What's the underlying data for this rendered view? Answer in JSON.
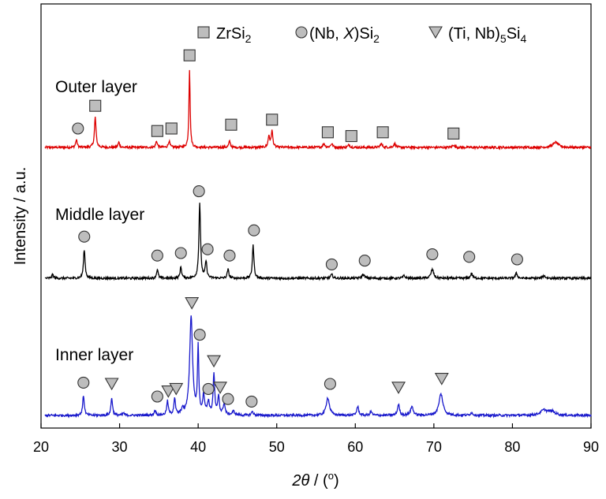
{
  "chart_data": {
    "type": "line",
    "xlabel_parts": {
      "symbol": "2θ",
      "sep": " / (",
      "unit": "o",
      "close": ")"
    },
    "ylabel": "Intensity / a.u.",
    "xlim": [
      20,
      90
    ],
    "xticks": [
      20,
      30,
      40,
      50,
      60,
      70,
      80,
      90
    ],
    "legend": {
      "placement": "top-right",
      "items": [
        {
          "marker": "square",
          "parts": [
            [
              "ZrSi",
              ""
            ],
            [
              "2",
              "sub"
            ]
          ]
        },
        {
          "marker": "circle",
          "parts": [
            [
              "(Nb, ",
              ""
            ],
            [
              "X",
              "italic"
            ],
            [
              ")Si",
              ""
            ],
            [
              "2",
              "sub"
            ]
          ]
        },
        {
          "marker": "triangle",
          "parts": [
            [
              "(Ti, Nb)",
              ""
            ],
            [
              "5",
              "sub"
            ],
            [
              "Si",
              ""
            ],
            [
              "4",
              "sub"
            ]
          ]
        }
      ]
    },
    "series": [
      {
        "name": "Outer layer",
        "color": "#dd0000",
        "baseline": 0.0,
        "peaks": [
          [
            24.5,
            0.06,
            0.12
          ],
          [
            26.9,
            0.24,
            0.12
          ],
          [
            29.9,
            0.04,
            0.12
          ],
          [
            34.7,
            0.05,
            0.12
          ],
          [
            36.3,
            0.05,
            0.12
          ],
          [
            38.9,
            0.62,
            0.09
          ],
          [
            44.0,
            0.05,
            0.12
          ],
          [
            49.0,
            0.09,
            0.12
          ],
          [
            49.4,
            0.13,
            0.12
          ],
          [
            56.0,
            0.03,
            0.15
          ],
          [
            57.0,
            0.03,
            0.15
          ],
          [
            59.2,
            0.02,
            0.15
          ],
          [
            63.3,
            0.03,
            0.15
          ],
          [
            65.0,
            0.03,
            0.15
          ],
          [
            72.5,
            0.02,
            0.15
          ],
          [
            85.5,
            0.04,
            0.4
          ]
        ],
        "markers": [
          {
            "shape": "circle",
            "x": 24.7,
            "y": 0.15
          },
          {
            "shape": "square",
            "x": 26.9,
            "y": 0.33
          },
          {
            "shape": "square",
            "x": 34.8,
            "y": 0.13
          },
          {
            "shape": "square",
            "x": 36.6,
            "y": 0.15
          },
          {
            "shape": "square",
            "x": 38.9,
            "y": 0.73
          },
          {
            "shape": "square",
            "x": 44.2,
            "y": 0.18
          },
          {
            "shape": "square",
            "x": 49.4,
            "y": 0.22
          },
          {
            "shape": "square",
            "x": 56.5,
            "y": 0.12
          },
          {
            "shape": "square",
            "x": 59.5,
            "y": 0.09
          },
          {
            "shape": "square",
            "x": 63.5,
            "y": 0.12
          },
          {
            "shape": "square",
            "x": 72.5,
            "y": 0.11
          }
        ]
      },
      {
        "name": "Middle layer",
        "color": "#000000",
        "baseline": 0.0,
        "peaks": [
          [
            21.5,
            0.03,
            0.12
          ],
          [
            25.5,
            0.23,
            0.12
          ],
          [
            34.8,
            0.07,
            0.12
          ],
          [
            37.8,
            0.09,
            0.12
          ],
          [
            40.2,
            0.6,
            0.12
          ],
          [
            41.0,
            0.13,
            0.12
          ],
          [
            43.8,
            0.07,
            0.12
          ],
          [
            47.0,
            0.26,
            0.12
          ],
          [
            57.0,
            0.03,
            0.15
          ],
          [
            61.0,
            0.03,
            0.2
          ],
          [
            66.2,
            0.02,
            0.15
          ],
          [
            69.8,
            0.07,
            0.2
          ],
          [
            74.8,
            0.04,
            0.15
          ],
          [
            80.5,
            0.04,
            0.15
          ],
          [
            84.0,
            0.02,
            0.2
          ]
        ],
        "markers": [
          {
            "shape": "circle",
            "x": 25.5,
            "y": 0.33
          },
          {
            "shape": "circle",
            "x": 34.8,
            "y": 0.18
          },
          {
            "shape": "circle",
            "x": 37.8,
            "y": 0.2
          },
          {
            "shape": "circle",
            "x": 40.1,
            "y": 0.69
          },
          {
            "shape": "circle",
            "x": 41.2,
            "y": 0.23
          },
          {
            "shape": "circle",
            "x": 44.0,
            "y": 0.18
          },
          {
            "shape": "circle",
            "x": 47.1,
            "y": 0.38
          },
          {
            "shape": "circle",
            "x": 57.0,
            "y": 0.11
          },
          {
            "shape": "circle",
            "x": 61.2,
            "y": 0.14
          },
          {
            "shape": "circle",
            "x": 69.8,
            "y": 0.19
          },
          {
            "shape": "circle",
            "x": 74.5,
            "y": 0.17
          },
          {
            "shape": "circle",
            "x": 80.6,
            "y": 0.15
          }
        ]
      },
      {
        "name": "Inner layer",
        "color": "#1a1acc",
        "baseline": 0.0,
        "peaks": [
          [
            25.4,
            0.16,
            0.12
          ],
          [
            29.0,
            0.14,
            0.12
          ],
          [
            30.5,
            0.02,
            0.12
          ],
          [
            34.5,
            0.04,
            0.12
          ],
          [
            36.1,
            0.11,
            0.12
          ],
          [
            37.0,
            0.13,
            0.12
          ],
          [
            38.0,
            0.04,
            0.15
          ],
          [
            39.1,
            0.78,
            0.22
          ],
          [
            40.0,
            0.53,
            0.1
          ],
          [
            40.7,
            0.15,
            0.15
          ],
          [
            41.3,
            0.1,
            0.15
          ],
          [
            42.0,
            0.32,
            0.12
          ],
          [
            42.6,
            0.15,
            0.12
          ],
          [
            43.3,
            0.09,
            0.15
          ],
          [
            44.5,
            0.03,
            0.2
          ],
          [
            46.9,
            0.03,
            0.15
          ],
          [
            56.5,
            0.14,
            0.25
          ],
          [
            60.3,
            0.07,
            0.15
          ],
          [
            62.0,
            0.03,
            0.15
          ],
          [
            65.5,
            0.09,
            0.15
          ],
          [
            67.2,
            0.07,
            0.2
          ],
          [
            70.9,
            0.17,
            0.3
          ],
          [
            74.8,
            0.02,
            0.2
          ],
          [
            84.0,
            0.04,
            0.5
          ],
          [
            85.0,
            0.03,
            0.5
          ]
        ],
        "markers": [
          {
            "shape": "circle",
            "x": 25.4,
            "y": 0.26
          },
          {
            "shape": "triangle",
            "x": 29.0,
            "y": 0.25
          },
          {
            "shape": "circle",
            "x": 34.8,
            "y": 0.15
          },
          {
            "shape": "triangle",
            "x": 36.2,
            "y": 0.19
          },
          {
            "shape": "triangle",
            "x": 37.2,
            "y": 0.21
          },
          {
            "shape": "triangle",
            "x": 39.2,
            "y": 0.89
          },
          {
            "shape": "circle",
            "x": 40.2,
            "y": 0.64
          },
          {
            "shape": "circle",
            "x": 41.3,
            "y": 0.21
          },
          {
            "shape": "triangle",
            "x": 42.0,
            "y": 0.43
          },
          {
            "shape": "triangle",
            "x": 42.8,
            "y": 0.22
          },
          {
            "shape": "circle",
            "x": 43.8,
            "y": 0.13
          },
          {
            "shape": "circle",
            "x": 46.8,
            "y": 0.11
          },
          {
            "shape": "circle",
            "x": 56.8,
            "y": 0.25
          },
          {
            "shape": "triangle",
            "x": 65.5,
            "y": 0.22
          },
          {
            "shape": "triangle",
            "x": 71.0,
            "y": 0.29
          }
        ]
      }
    ]
  }
}
